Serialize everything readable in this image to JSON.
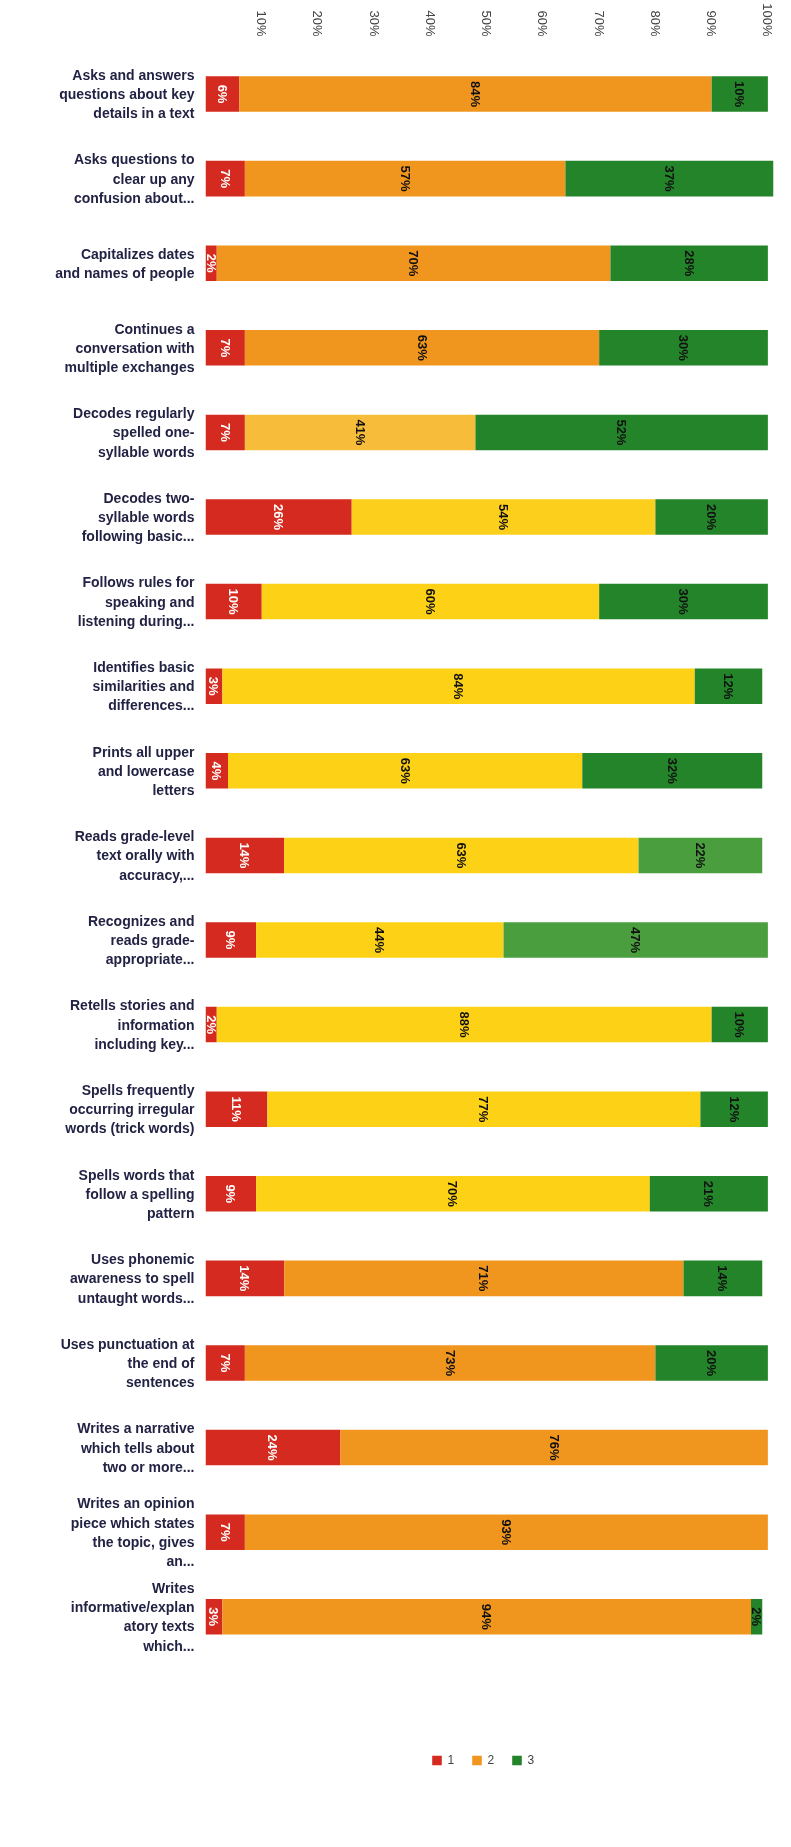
{
  "chart_data": {
    "type": "bar",
    "orientation": "horizontal",
    "stacked": true,
    "categories": [
      "Asks and answers questions about key details in a text",
      "Asks questions to clear up any confusion about...",
      "Capitalizes dates and names of people",
      "Continues a conversation with multiple exchanges",
      "Decodes regularly spelled one-syllable words",
      "Decodes two-syllable words following basic...",
      "Follows rules for speaking and listening during...",
      "Identifies basic similarities and differences...",
      "Prints all upper and lowercase letters",
      "Reads grade-level text orally with accuracy,...",
      "Recognizes and reads grade-appropriate...",
      "Retells stories and information including key...",
      "Spells frequently occurring irregular words (trick words)",
      "Spells words that follow a spelling pattern",
      "Uses phonemic awareness to spell untaught words...",
      "Uses punctuation at the end of sentences",
      "Writes a narrative which tells about two or more...",
      "Writes an opinion piece which states the topic, gives an...",
      "Writes informative/explan atory texts which..."
    ],
    "series": [
      {
        "name": "1",
        "color": "#d42a1f",
        "values": [
          6,
          7,
          2,
          7,
          7,
          26,
          10,
          3,
          4,
          14,
          9,
          2,
          11,
          9,
          14,
          7,
          24,
          7,
          3
        ],
        "value_labels": [
          "6%",
          "7%",
          "2%",
          "7%",
          "7%",
          "26%",
          "10%",
          "3%",
          "4%",
          "14%",
          "9%",
          "2%",
          "11%",
          "9%",
          "14%",
          "7%",
          "24%",
          "7%",
          "3%"
        ]
      },
      {
        "name": "2",
        "colors": [
          "#f0961e",
          "#f0961e",
          "#f0961e",
          "#f0961e",
          "#f7bc3a",
          "#fccf1c",
          "#fcd116",
          "#fcd116",
          "#fcd116",
          "#fcd116",
          "#fcd116",
          "#fcd116",
          "#fcd116",
          "#fcd116",
          "#f0961e",
          "#f0961e",
          "#f0961e",
          "#f0961e",
          "#f0961e"
        ],
        "values": [
          84,
          57,
          70,
          63,
          41,
          54,
          60,
          84,
          63,
          63,
          44,
          88,
          77,
          70,
          71,
          73,
          76,
          93,
          94
        ],
        "value_labels": [
          "84%",
          "57%",
          "70%",
          "63%",
          "41%",
          "54%",
          "60%",
          "84%",
          "63%",
          "63%",
          "44%",
          "88%",
          "77%",
          "70%",
          "71%",
          "73%",
          "76%",
          "93%",
          "94%"
        ]
      },
      {
        "name": "3",
        "colors": [
          "#23842a",
          "#23842a",
          "#23842a",
          "#23842a",
          "#23842a",
          "#23842a",
          "#23842a",
          "#23842a",
          "#23842a",
          "#4a9e3e",
          "#4a9e3e",
          "#23842a",
          "#23842a",
          "#23842a",
          "#23842a",
          "#23842a",
          "#23842a",
          "#23842a",
          "#23842a"
        ],
        "values": [
          10,
          37,
          28,
          30,
          52,
          20,
          30,
          12,
          32,
          22,
          47,
          10,
          12,
          21,
          14,
          20,
          null,
          null,
          2
        ],
        "value_labels": [
          "10%",
          "37%",
          "28%",
          "30%",
          "52%",
          "20%",
          "30%",
          "12%",
          "32%",
          "22%",
          "47%",
          "10%",
          "12%",
          "21%",
          "14%",
          "20%",
          null,
          null,
          "2%"
        ]
      }
    ],
    "xlim": [
      0,
      101
    ],
    "xticks": [
      {
        "value": 10,
        "label": "10%"
      },
      {
        "value": 20,
        "label": "20%"
      },
      {
        "value": 30,
        "label": "30%"
      },
      {
        "value": 40,
        "label": "40%"
      },
      {
        "value": 50,
        "label": "50%"
      },
      {
        "value": 60,
        "label": "60%"
      },
      {
        "value": 70,
        "label": "70%"
      },
      {
        "value": 80,
        "label": "80%"
      },
      {
        "value": 90,
        "label": "90%"
      },
      {
        "value": 100,
        "label": "100%"
      }
    ],
    "grid": false,
    "legend": "bottom"
  }
}
